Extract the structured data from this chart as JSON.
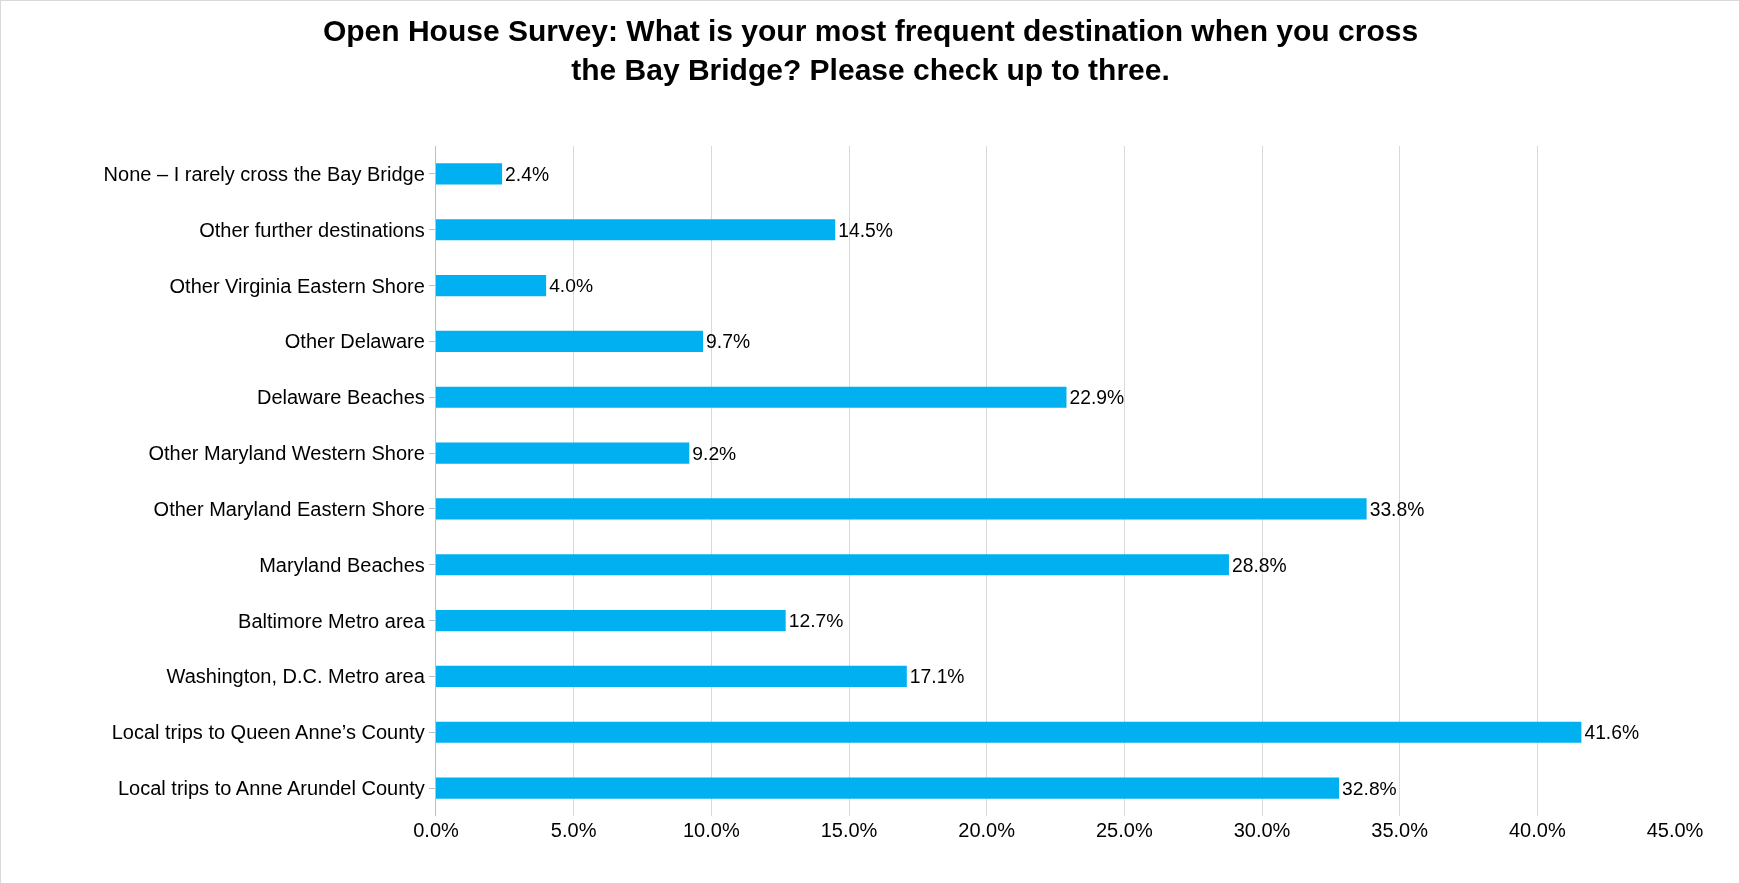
{
  "chart_data": {
    "type": "bar",
    "orientation": "horizontal",
    "title": "Open House Survey: What is your most frequent destination when you cross the Bay Bridge? Please check up to three.",
    "categories": [
      "None – I rarely cross the Bay Bridge",
      "Other further destinations",
      "Other Virginia Eastern Shore",
      "Other Delaware",
      "Delaware Beaches",
      "Other Maryland Western Shore",
      "Other Maryland Eastern Shore",
      "Maryland Beaches",
      "Baltimore Metro area",
      "Washington, D.C. Metro area",
      "Local trips to Queen Anne’s County",
      "Local trips to Anne Arundel County"
    ],
    "values": [
      2.4,
      14.5,
      4.0,
      9.7,
      22.9,
      9.2,
      33.8,
      28.8,
      12.7,
      17.1,
      41.6,
      32.8
    ],
    "value_labels": [
      "2.4%",
      "14.5%",
      "4.0%",
      "9.7%",
      "22.9%",
      "9.2%",
      "33.8%",
      "28.8%",
      "12.7%",
      "17.1%",
      "41.6%",
      "32.8%"
    ],
    "color": "#00b0f0",
    "xlim": [
      0,
      45
    ],
    "xticks": [
      {
        "value": 0,
        "label": "0.0%"
      },
      {
        "value": 5,
        "label": "5.0%"
      },
      {
        "value": 10,
        "label": "10.0%"
      },
      {
        "value": 15,
        "label": "15.0%"
      },
      {
        "value": 20,
        "label": "20.0%"
      },
      {
        "value": 25,
        "label": "25.0%"
      },
      {
        "value": 30,
        "label": "30.0%"
      },
      {
        "value": 35,
        "label": "35.0%"
      },
      {
        "value": 40,
        "label": "40.0%"
      },
      {
        "value": 45,
        "label": "45.0%"
      }
    ],
    "grid": "x",
    "legend": false
  }
}
